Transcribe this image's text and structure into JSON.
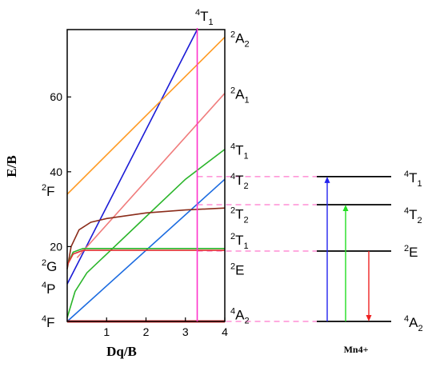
{
  "chart_data": {
    "type": "line",
    "xlabel": "Dq/B",
    "ylabel": "E/B",
    "xlim": [
      0,
      4
    ],
    "ylim": [
      0,
      78
    ],
    "x_ticks": [
      "1",
      "2",
      "3",
      "4"
    ],
    "y_ticks": [
      "20",
      "40",
      "60"
    ],
    "series": [
      {
        "name": "4T1",
        "color": "#1b1bd6",
        "x": [
          0,
          3.3
        ],
        "y": [
          10,
          78
        ]
      },
      {
        "name": "2A2",
        "color": "#ff9a22",
        "x": [
          0,
          4
        ],
        "y": [
          34,
          76
        ]
      },
      {
        "name": "2A1",
        "color": "#f07b7b",
        "x": [
          0.25,
          4
        ],
        "y": [
          17,
          61
        ]
      },
      {
        "name": "4T1",
        "color": "#2ab52a",
        "x": [
          0,
          0.2,
          0.5,
          1,
          2,
          3,
          4
        ],
        "y": [
          1,
          8,
          13,
          18,
          28,
          38,
          46
        ]
      },
      {
        "name": "4T2",
        "color": "#1b6be0",
        "x": [
          0,
          4
        ],
        "y": [
          0,
          38
        ]
      },
      {
        "name": "2T2",
        "color": "#8b2c1a",
        "x": [
          0,
          0.1,
          0.3,
          0.6,
          1,
          2,
          3,
          4
        ],
        "y": [
          14,
          20,
          24.5,
          26.5,
          27.5,
          29,
          29.8,
          30.3
        ]
      },
      {
        "name": "2T1",
        "color": "#2ab52a",
        "x": [
          0,
          0.15,
          0.4,
          4
        ],
        "y": [
          15,
          18.5,
          19.5,
          19.5
        ]
      },
      {
        "name": "2E",
        "color": "#e03030",
        "x": [
          0,
          0.15,
          0.4,
          4
        ],
        "y": [
          15,
          18,
          19,
          19
        ]
      },
      {
        "name": "4A2",
        "color": "#e03030",
        "x": [
          0,
          4
        ],
        "y": [
          0,
          0
        ]
      }
    ],
    "vertical_line": {
      "x": 3.3,
      "color": "#ff33cc"
    },
    "left_labels": [
      {
        "sup": "2",
        "main": "F",
        "y": 35
      },
      {
        "sup": "2",
        "main": "G",
        "y": 15
      },
      {
        "sup": "4",
        "main": "P",
        "y": 9
      },
      {
        "sup": "4",
        "main": "F",
        "y": 0
      }
    ],
    "right_labels": [
      {
        "sup": "2",
        "main": "A",
        "sub": "2",
        "y": 76
      },
      {
        "sup": "2",
        "main": "A",
        "sub": "1",
        "y": 61
      },
      {
        "sup": "4",
        "main": "T",
        "sub": "1",
        "y": 46
      },
      {
        "sup": "4",
        "main": "T",
        "sub": "2",
        "y": 38
      },
      {
        "sup": "2",
        "main": "T",
        "sub": "2",
        "y": 29
      },
      {
        "sup": "2",
        "main": "T",
        "sub": "1",
        "y": 22
      },
      {
        "sup": "2",
        "main": "E",
        "sub": "",
        "y": 14
      },
      {
        "sup": "4",
        "main": "A",
        "sub": "2",
        "y": 2
      }
    ],
    "top_label": {
      "sup": "4",
      "main": "T",
      "sub": "1"
    },
    "level_diagram": {
      "title": "Mn4+",
      "levels": [
        {
          "name": "4T1",
          "sup": "4",
          "main": "T",
          "sub": "1",
          "y": 38.7
        },
        {
          "name": "4T2",
          "sup": "4",
          "main": "T",
          "sub": "2",
          "y": 31.2
        },
        {
          "name": "2E",
          "sup": "2",
          "main": "E",
          "sub": "",
          "y": 18.8
        },
        {
          "name": "4A2",
          "sup": "4",
          "main": "A",
          "sub": "2",
          "y": 0
        }
      ],
      "transitions": [
        {
          "from": "4A2",
          "to": "4T1",
          "color": "#2222ee"
        },
        {
          "from": "4A2",
          "to": "4T2",
          "color": "#22dd22"
        },
        {
          "from": "2E",
          "to": "4A2",
          "color": "#ee2222"
        }
      ],
      "connector_color": "#ff77cc"
    }
  }
}
